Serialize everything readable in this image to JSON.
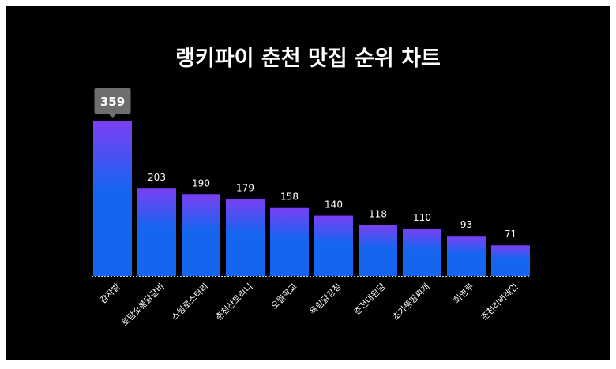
{
  "chart_data": {
    "type": "bar",
    "title": "랭키파이 춘천 맛집 순위 차트",
    "categories": [
      "감자밭",
      "토담숯불닭갈비",
      "스윙로스터리",
      "춘천산토리니",
      "오월학교",
      "욕림닭강정",
      "춘천대원당",
      "초가뚱땅찌개",
      "회영루",
      "춘천리버레인"
    ],
    "values": [
      359,
      203,
      190,
      179,
      158,
      140,
      118,
      110,
      93,
      71
    ],
    "highlight_index": 0,
    "ylim": [
      0,
      359
    ],
    "grid": false,
    "legend": "none",
    "colors": {
      "bar_top": "#7b3ff2",
      "bar_bottom": "#1565f0",
      "background": "#000000",
      "text": "#ffffff",
      "highlight_label_bg": "#6e6e6e",
      "baseline": "#d0d0d0"
    }
  }
}
